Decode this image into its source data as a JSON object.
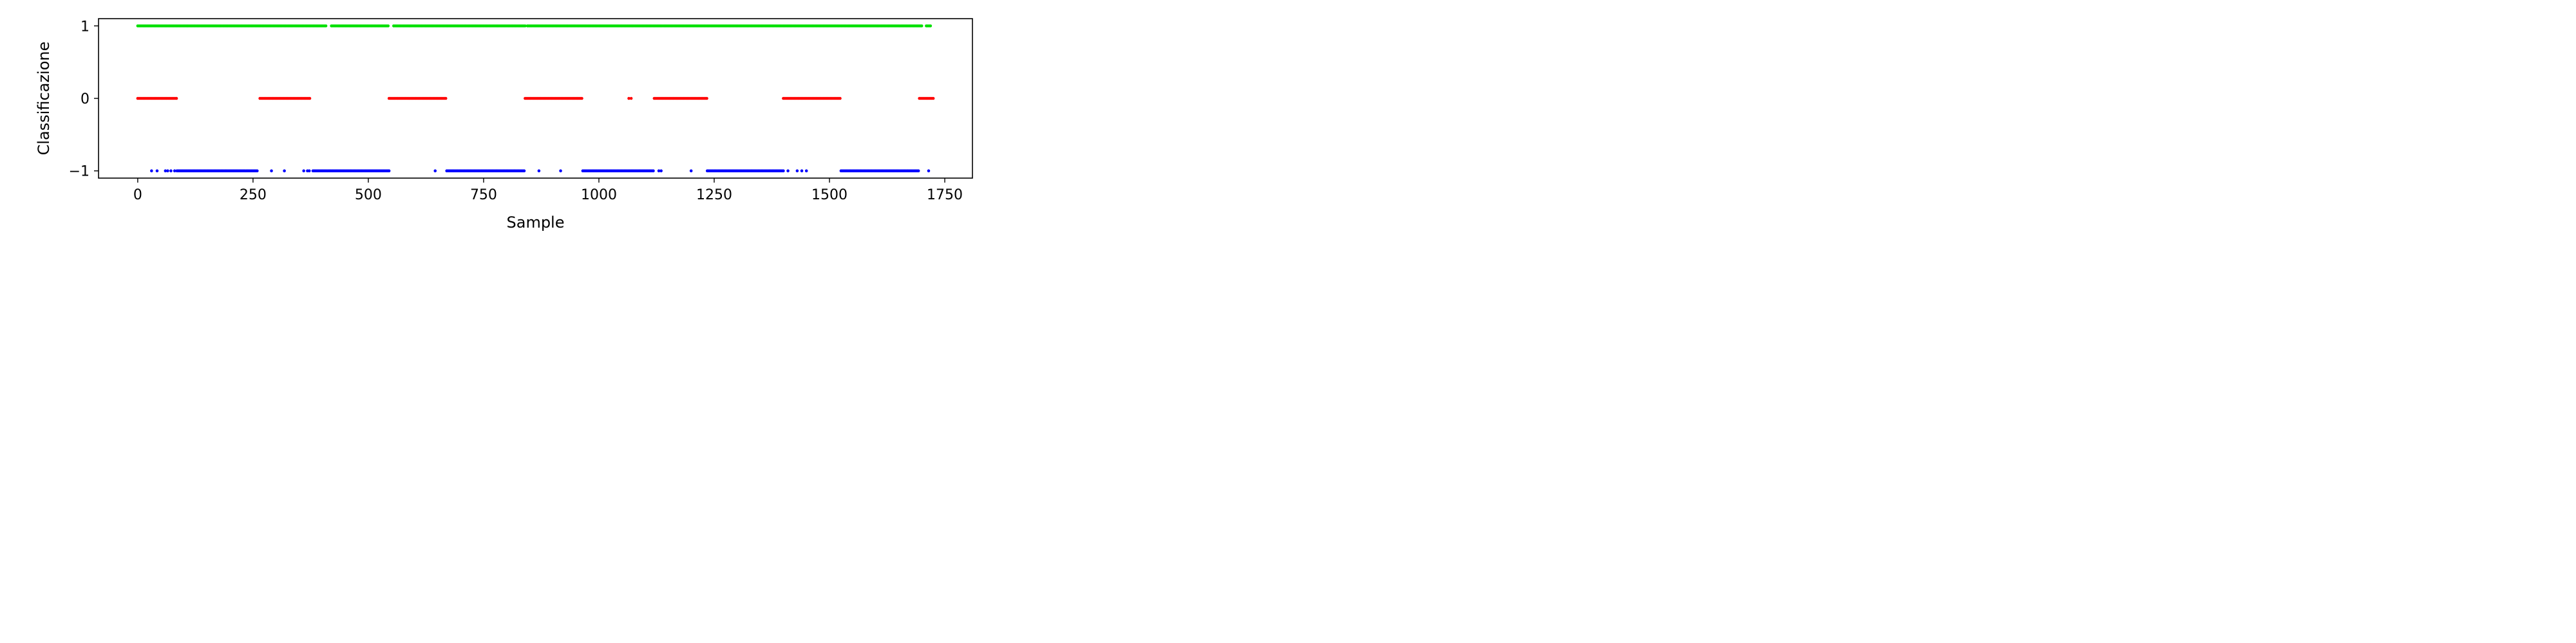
{
  "chart_data": {
    "type": "scatter",
    "title": "",
    "xlabel": "Sample",
    "ylabel": "Classificazione",
    "xlim": [
      -85,
      1810
    ],
    "ylim": [
      -1.1,
      1.1
    ],
    "xticks": [
      0,
      250,
      500,
      750,
      1000,
      1250,
      1500,
      1750
    ],
    "xtick_labels": [
      "0",
      "250",
      "500",
      "750",
      "1000",
      "1250",
      "1500",
      "1750"
    ],
    "yticks": [
      1,
      0,
      -1
    ],
    "ytick_labels": [
      "1",
      "0",
      "−1"
    ],
    "grid": false,
    "legend": "none",
    "series": [
      {
        "value": 1,
        "color": "#00e000",
        "ranges": [
          [
            0,
            410
          ],
          [
            420,
            545
          ],
          [
            555,
            840
          ],
          [
            845,
            1700
          ],
          [
            1710,
            1720
          ]
        ],
        "points": []
      },
      {
        "value": 0,
        "color": "#ff0000",
        "ranges": [
          [
            0,
            85
          ],
          [
            265,
            375
          ],
          [
            545,
            670
          ],
          [
            840,
            965
          ],
          [
            1120,
            1235
          ],
          [
            1400,
            1525
          ],
          [
            1695,
            1725
          ]
        ],
        "points": [
          1065,
          1070
        ]
      },
      {
        "value": -1,
        "color": "#0000ff",
        "ranges": [
          [
            85,
            260
          ],
          [
            380,
            545
          ],
          [
            670,
            840
          ],
          [
            965,
            1120
          ],
          [
            1235,
            1400
          ],
          [
            1525,
            1695
          ]
        ],
        "points": [
          30,
          42,
          60,
          65,
          72,
          80,
          290,
          318,
          360,
          368,
          372,
          645,
          870,
          917,
          1130,
          1135,
          1200,
          1410,
          1430,
          1440,
          1450,
          1715
        ]
      }
    ]
  }
}
